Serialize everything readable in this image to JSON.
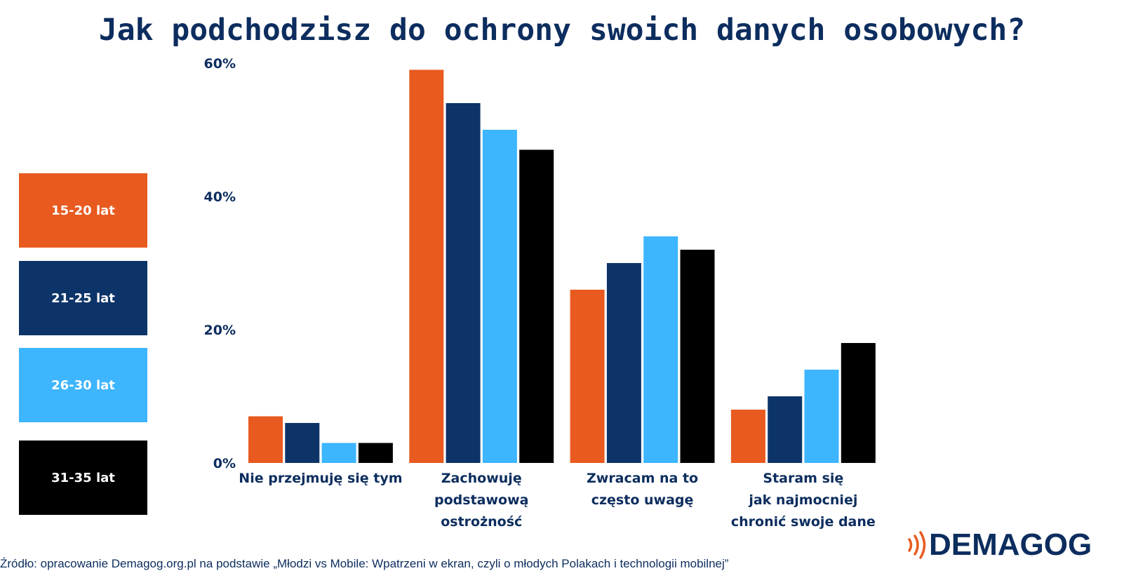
{
  "title": "Jak podchodzisz do ochrony swoich danych osobowych?",
  "source": "Źródło: opracowanie Demagog.org.pl na podstawie „Młodzi vs Mobile: Wpatrzeni w ekran, czyli o młodych Polakach i technologii mobilnej”",
  "logo": {
    "text": "DEMAGOG",
    "icon": "signal-waves-icon"
  },
  "chart_data": {
    "type": "bar",
    "title": "Jak podchodzisz do ochrony swoich danych osobowych?",
    "xlabel": "",
    "ylabel": "",
    "ylim": [
      0,
      60
    ],
    "yticks": [
      0,
      20,
      40,
      60
    ],
    "ytick_labels": [
      "0%",
      "20%",
      "40%",
      "60%"
    ],
    "grid": false,
    "legend_placement": "left",
    "categories": [
      [
        "Nie przejmuję się tym"
      ],
      [
        "Zachowuję",
        "podstawową",
        "ostrożność"
      ],
      [
        "Zwracam na to",
        "często uwagę"
      ],
      [
        "Staram się",
        "jak najmocniej",
        "chronić swoje dane"
      ]
    ],
    "series": [
      {
        "name": "15-20 lat",
        "color": "#e85a1f",
        "values": [
          7,
          59,
          26,
          8
        ]
      },
      {
        "name": "21-25 lat",
        "color": "#0c3468",
        "values": [
          6,
          54,
          30,
          10
        ]
      },
      {
        "name": "26-30 lat",
        "color": "#3db5ff",
        "values": [
          3,
          50,
          34,
          14
        ]
      },
      {
        "name": "31-35 lat",
        "color": "#000000",
        "values": [
          3,
          47,
          32,
          18
        ]
      }
    ]
  }
}
